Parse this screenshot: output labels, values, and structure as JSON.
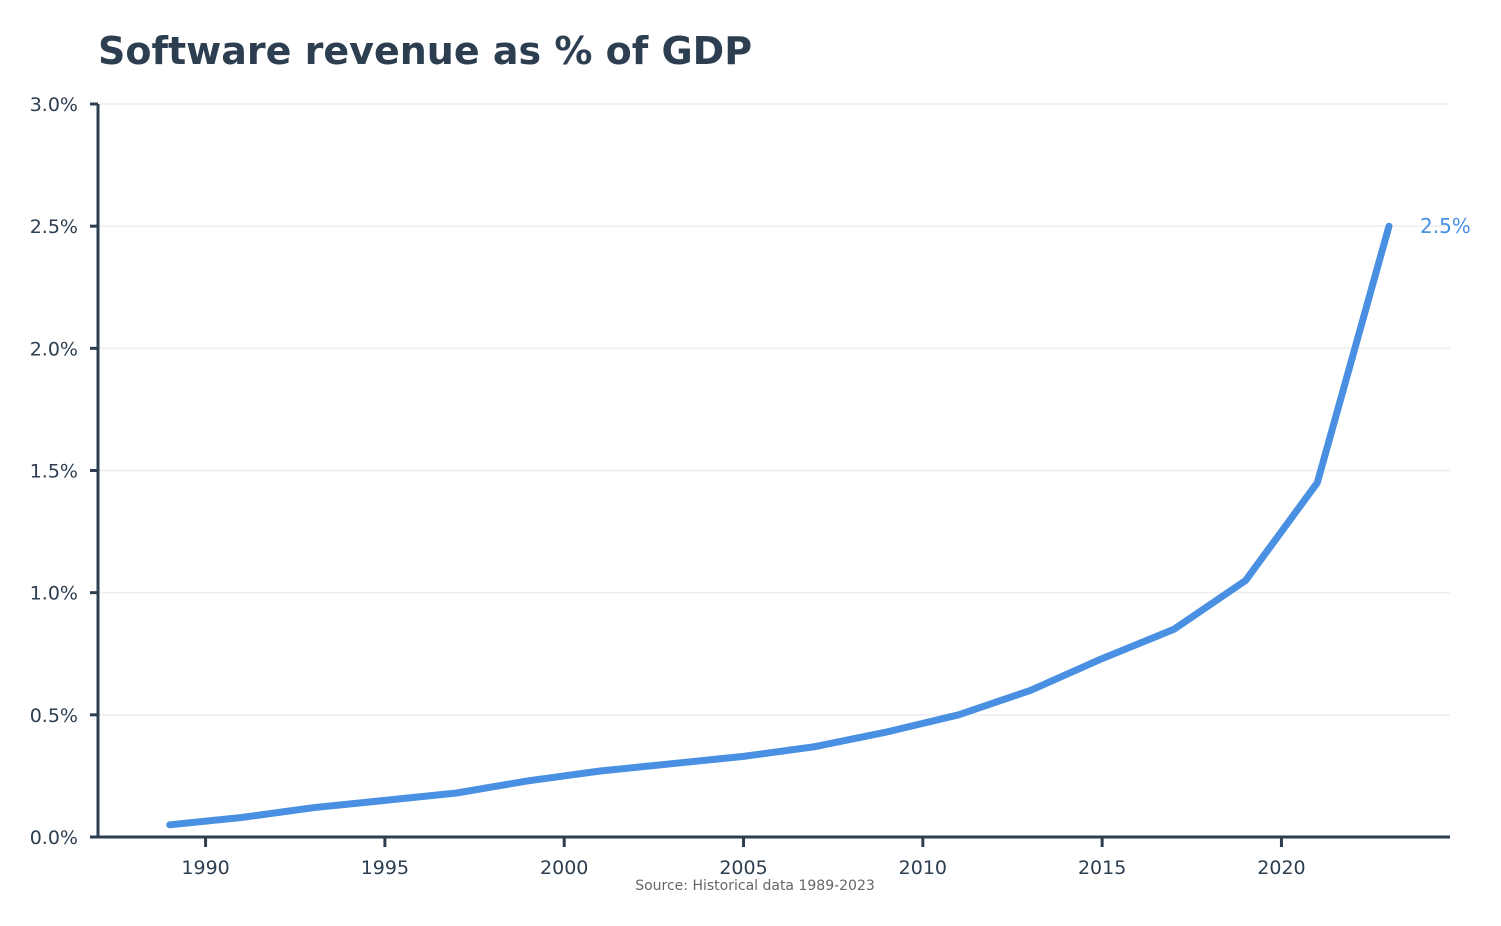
{
  "chart_data": {
    "type": "line",
    "title": "Software revenue as % of GDP",
    "xlabel": "",
    "ylabel": "",
    "source_note": "Source: Historical data 1989-2023",
    "x": [
      1989,
      1991,
      1993,
      1995,
      1997,
      1999,
      2001,
      2003,
      2005,
      2007,
      2009,
      2011,
      2013,
      2015,
      2017,
      2019,
      2021,
      2023
    ],
    "series": [
      {
        "name": "Software revenue as % of GDP",
        "color": "#4a90e2",
        "values": [
          0.05,
          0.08,
          0.12,
          0.15,
          0.18,
          0.23,
          0.27,
          0.3,
          0.33,
          0.37,
          0.43,
          0.5,
          0.6,
          0.73,
          0.85,
          1.05,
          1.45,
          2.5
        ]
      }
    ],
    "end_label": "2.5%",
    "xlim": [
      1987,
      2024.7
    ],
    "ylim": [
      0,
      3.0
    ],
    "xticks": [
      1990,
      1995,
      2000,
      2005,
      2010,
      2015,
      2020
    ],
    "xtick_labels": [
      "1990",
      "1995",
      "2000",
      "2005",
      "2010",
      "2015",
      "2020"
    ],
    "yticks": [
      0,
      0.5,
      1.0,
      1.5,
      2.0,
      2.5,
      3.0
    ],
    "ytick_labels": [
      "0.0%",
      "0.5%",
      "1.0%",
      "1.5%",
      "2.0%",
      "2.5%",
      "3.0%"
    ],
    "grid": "horizontal",
    "legend": "none"
  },
  "colors": {
    "text": "#2c3e50",
    "axis": "#2c3e50",
    "grid": "#eeeeee",
    "line": "#4a90e2",
    "source": "#666666"
  }
}
